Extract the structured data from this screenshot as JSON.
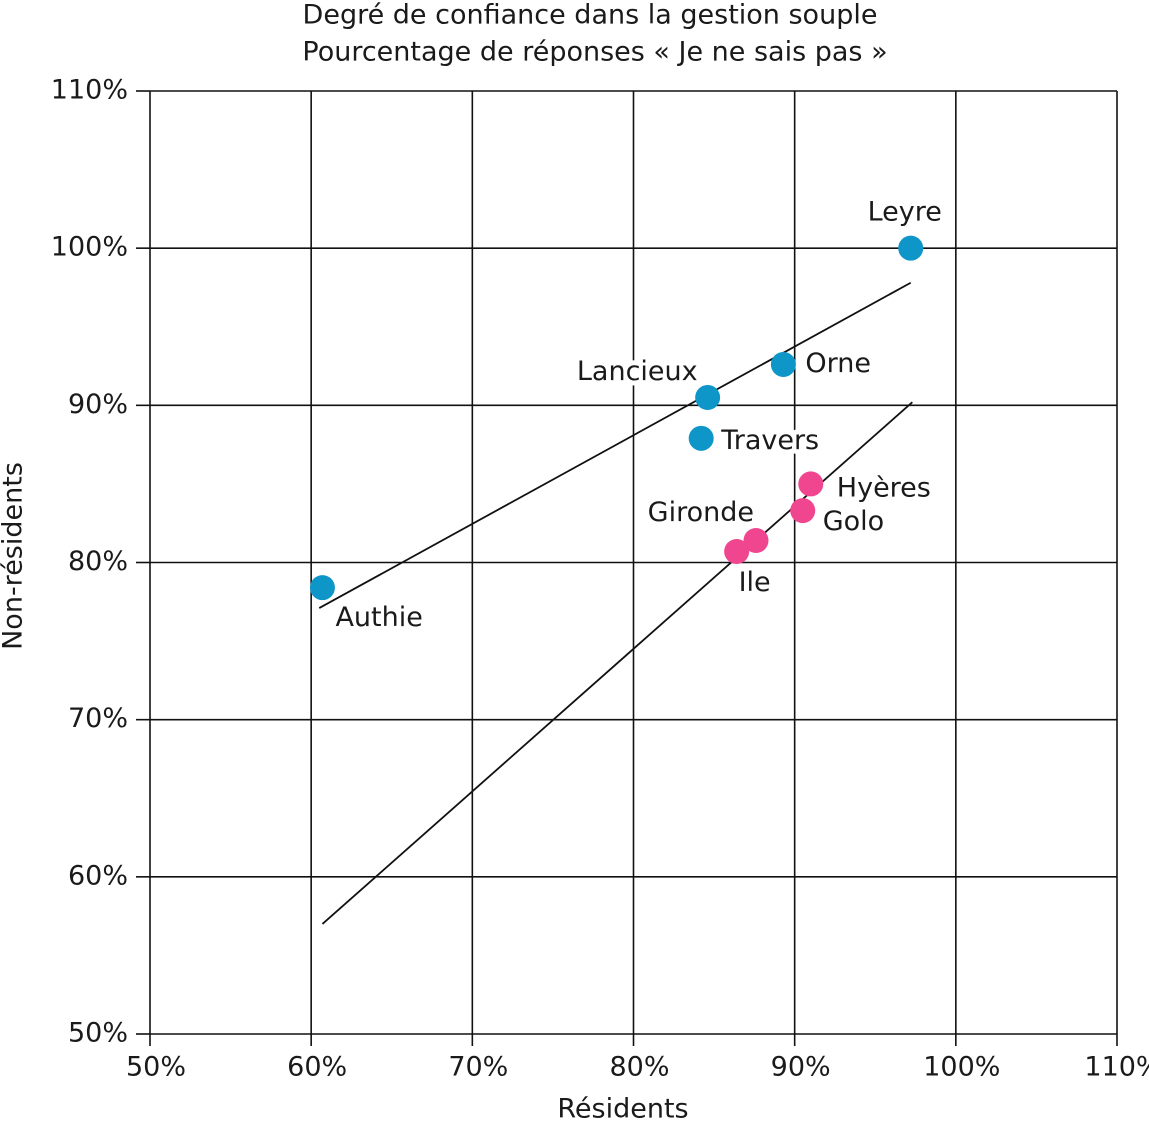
{
  "chart_data": {
    "type": "scatter",
    "title": "Degré de confiance dans la gestion souple",
    "subtitle": "Pourcentage de réponses « Je ne sais pas »",
    "x_label": "Résidents",
    "y_label": "Non-résidents",
    "xlim": [
      50,
      110
    ],
    "ylim": [
      50,
      110
    ],
    "xticks": [
      {
        "value": 50,
        "label": "50%"
      },
      {
        "value": 60,
        "label": "60%"
      },
      {
        "value": 70,
        "label": "70%"
      },
      {
        "value": 80,
        "label": "80%"
      },
      {
        "value": 90,
        "label": "90%"
      },
      {
        "value": 100,
        "label": "100%"
      },
      {
        "value": 110,
        "label": "110%"
      }
    ],
    "yticks": [
      {
        "value": 50,
        "label": "50%"
      },
      {
        "value": 60,
        "label": "60%"
      },
      {
        "value": 70,
        "label": "70%"
      },
      {
        "value": 80,
        "label": "80%"
      },
      {
        "value": 90,
        "label": "90%"
      },
      {
        "value": 100,
        "label": "100%"
      },
      {
        "value": 110,
        "label": "110%"
      }
    ],
    "grid": true,
    "series": [
      {
        "color": "#0e96c8",
        "labels": [
          "Leyre",
          "Orne",
          "Lancieux",
          "Travers",
          "Authie"
        ],
        "x": [
          97.2,
          89.3,
          84.6,
          84.2,
          60.7
        ],
        "values": [
          100,
          92.6,
          90.5,
          87.9,
          78.4
        ],
        "trend": {
          "x": [
            60.5,
            97.2
          ],
          "y": [
            77.1,
            97.8
          ]
        }
      },
      {
        "color": "#f0458f",
        "labels": [
          "Hyères",
          "Golo",
          "Gironde",
          "Ile"
        ],
        "x": [
          91.0,
          90.5,
          87.6,
          86.4
        ],
        "values": [
          85.0,
          83.3,
          81.4,
          80.7
        ],
        "trend": {
          "x": [
            60.7,
            97.3
          ],
          "y": [
            57.0,
            90.2
          ]
        }
      }
    ]
  }
}
